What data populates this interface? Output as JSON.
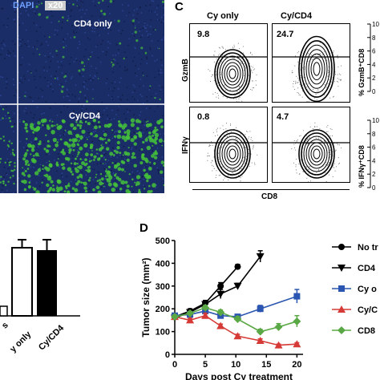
{
  "panel_letters": {
    "c": "C",
    "d": "D"
  },
  "microscopy": {
    "legend_left": "",
    "legend_dapi": "DAPI",
    "legend_mag": "x20",
    "label_cd4_only": "CD4 only",
    "label_cy_cd4": "Cy/CD4",
    "colors": {
      "background": "#1b2d66",
      "signal": "#44c23a"
    }
  },
  "flow": {
    "col_headers": [
      "Cy only",
      "Cy/CD4"
    ],
    "row_labels": [
      "GzmB",
      "IFNγ"
    ],
    "values": [
      [
        "9.8",
        "24.7"
      ],
      [
        "0.8",
        "4.7"
      ]
    ],
    "x_axis_label": "CD8",
    "right_labels": [
      "% GzmB⁺CD8",
      "% IFNγ⁺CD8"
    ],
    "right_ticks_top": [
      "0",
      "2",
      "4",
      "6",
      "8",
      "10"
    ],
    "right_ticks_bottom": [
      "0",
      "2",
      "4",
      "6",
      "8",
      "10"
    ]
  },
  "bar_fragment": {
    "categories": [
      "y only",
      "Cy/CD4"
    ],
    "first_label": "s"
  },
  "chart_data": {
    "type": "line",
    "xlabel": "Days post Cy treatment",
    "ylabel": "Tumor size (mm²)",
    "xlim": [
      0,
      21
    ],
    "ylim": [
      0,
      500
    ],
    "xticks": [
      "0",
      "5",
      "10",
      "15",
      "20"
    ],
    "yticks": [
      "0",
      "100",
      "200",
      "300",
      "400",
      "500"
    ],
    "legend_position": "right",
    "series": [
      {
        "name": "No tr",
        "color": "#000000",
        "marker": "circle",
        "x": [
          0,
          2.5,
          5,
          7.5,
          10.3
        ],
        "y": [
          165,
          190,
          225,
          300,
          385
        ],
        "err": [
          8,
          10,
          12,
          15,
          10
        ]
      },
      {
        "name": "CD4",
        "color": "#000000",
        "marker": "triangle-down",
        "x": [
          0,
          2.5,
          5,
          7.5,
          10.3,
          14
        ],
        "y": [
          160,
          185,
          220,
          265,
          300,
          430
        ],
        "err": [
          8,
          10,
          15,
          20,
          12,
          25
        ]
      },
      {
        "name": "Cy o",
        "color": "#2a55b0",
        "marker": "square",
        "x": [
          0,
          2.5,
          5,
          7.5,
          10.3,
          14,
          20
        ],
        "y": [
          170,
          175,
          190,
          170,
          165,
          200,
          255
        ],
        "err": [
          8,
          8,
          10,
          10,
          10,
          15,
          30
        ]
      },
      {
        "name": "Cy/C",
        "color": "#d63a36",
        "marker": "triangle-up",
        "x": [
          0,
          2.5,
          5,
          7.5,
          10.3,
          14,
          17,
          20
        ],
        "y": [
          165,
          150,
          170,
          125,
          80,
          60,
          40,
          45
        ],
        "err": [
          8,
          8,
          10,
          8,
          8,
          8,
          5,
          6
        ]
      },
      {
        "name": "CD8",
        "color": "#5aa845",
        "marker": "diamond",
        "x": [
          0,
          2.5,
          5,
          7.5,
          10.3,
          14,
          17,
          20
        ],
        "y": [
          165,
          180,
          205,
          185,
          155,
          100,
          120,
          145
        ],
        "err": [
          8,
          8,
          10,
          10,
          12,
          10,
          15,
          25
        ]
      }
    ]
  }
}
